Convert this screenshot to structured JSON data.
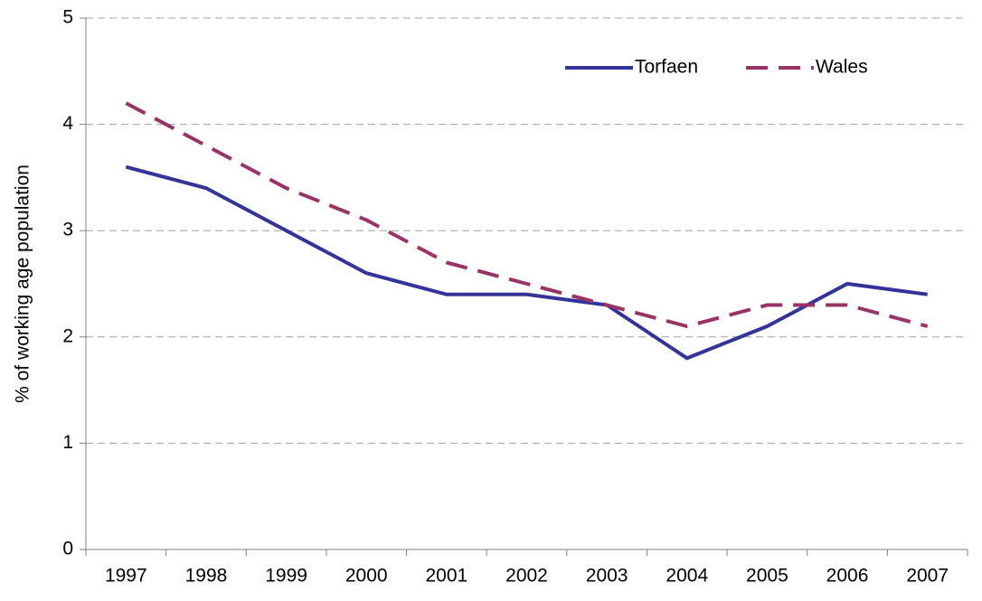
{
  "chart_data": {
    "type": "line",
    "y_label": "% of working age population",
    "categories": [
      "1997",
      "1998",
      "1999",
      "2000",
      "2001",
      "2002",
      "2003",
      "2004",
      "2005",
      "2006",
      "2007"
    ],
    "series": [
      {
        "name": "Torfaen",
        "color": "#333399",
        "dash": false,
        "values": [
          3.6,
          3.4,
          3.0,
          2.6,
          2.4,
          2.4,
          2.3,
          1.8,
          2.1,
          2.5,
          2.4
        ]
      },
      {
        "name": "Wales",
        "color": "#993366",
        "dash": true,
        "values": [
          4.2,
          3.8,
          3.4,
          3.1,
          2.7,
          2.5,
          2.3,
          2.1,
          2.3,
          2.3,
          2.1
        ]
      }
    ],
    "ylim": [
      0,
      5
    ],
    "yticks": [
      0,
      1,
      2,
      3,
      4,
      5
    ],
    "grid": true,
    "legend": "top-right"
  }
}
